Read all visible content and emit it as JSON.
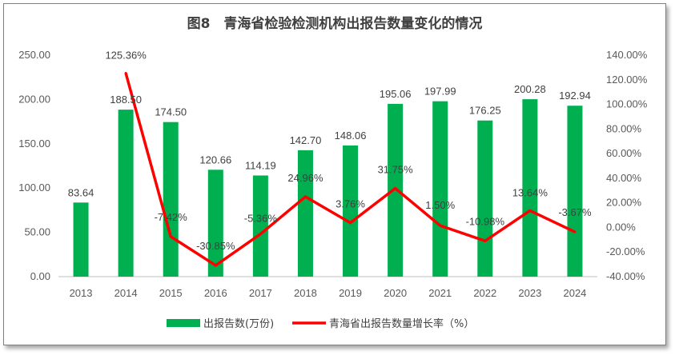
{
  "chart_data": {
    "type": "bar",
    "title": "图8　青海省检验检测机构出报告数量变化的情况",
    "categories": [
      "2013",
      "2014",
      "2015",
      "2016",
      "2017",
      "2018",
      "2019",
      "2020",
      "2021",
      "2022",
      "2023",
      "2024"
    ],
    "series": [
      {
        "name": "出报告数(万份)",
        "type": "bar",
        "axis": "left",
        "color": "#00b050",
        "values": [
          83.64,
          188.5,
          174.5,
          120.66,
          114.19,
          142.7,
          148.06,
          195.06,
          197.99,
          176.25,
          200.28,
          192.94
        ],
        "labels": [
          "83.64",
          "188.50",
          "174.50",
          "120.66",
          "114.19",
          "142.70",
          "148.06",
          "195.06",
          "197.99",
          "176.25",
          "200.28",
          "192.94"
        ]
      },
      {
        "name": "青海省出报告数量增长率（%）",
        "type": "line",
        "axis": "right",
        "color": "#ff0000",
        "x": [
          "2014",
          "2015",
          "2016",
          "2017",
          "2018",
          "2019",
          "2020",
          "2021",
          "2022",
          "2023",
          "2024"
        ],
        "values": [
          125.36,
          -7.42,
          -30.85,
          -5.36,
          24.96,
          3.76,
          31.75,
          1.5,
          -10.98,
          13.64,
          -3.67
        ],
        "labels": [
          "125.36%",
          "-7.42%",
          "-30.85%",
          "-5.36%",
          "24.96%",
          "3.76%",
          "31.75%",
          "1.50%",
          "-10.98%",
          "13.64%",
          "-3.67%"
        ]
      }
    ],
    "left_axis": {
      "range": [
        0,
        250
      ],
      "ticks": [
        0,
        50,
        100,
        150,
        200,
        250
      ],
      "tick_labels": [
        "0.00",
        "50.00",
        "100.00",
        "150.00",
        "200.00",
        "250.00"
      ]
    },
    "right_axis": {
      "range": [
        -40,
        140
      ],
      "ticks": [
        -40,
        -20,
        0,
        20,
        40,
        60,
        80,
        100,
        120,
        140
      ],
      "tick_labels": [
        "-40.00%",
        "-20.00%",
        "0.00%",
        "20.00%",
        "40.00%",
        "60.00%",
        "80.00%",
        "100.00%",
        "120.00%",
        "140.00%"
      ]
    },
    "grid": false,
    "legend_position": "bottom"
  }
}
